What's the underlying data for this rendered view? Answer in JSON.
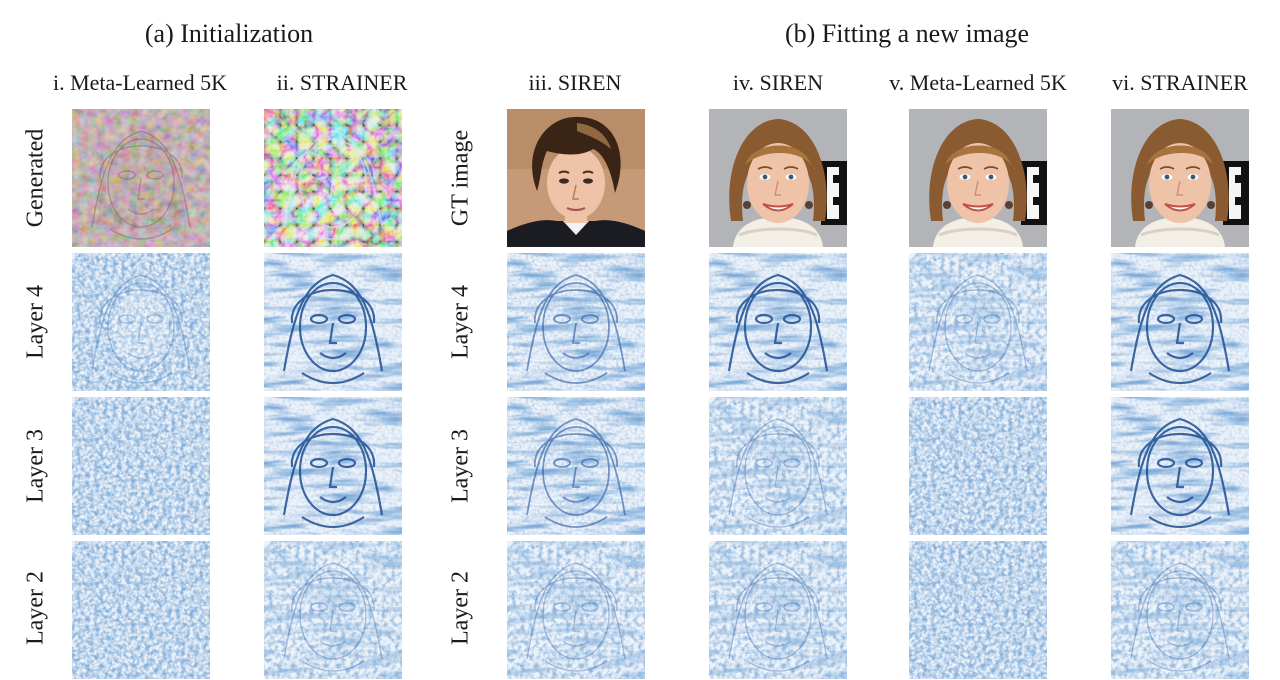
{
  "sections": {
    "initialization": "(a) Initialization",
    "fitting": "(b) Fitting a new image"
  },
  "columns": [
    {
      "id": "col1",
      "label": "i. Meta-Learned 5K",
      "rows": {
        "top": "generated-face-mosaic",
        "layer4": "noise-faint-face",
        "layer3": "noise",
        "layer2": "noise"
      }
    },
    {
      "id": "col2",
      "label": "ii. STRAINER",
      "rows": {
        "top": "generated-face-colorful",
        "layer4": "feature-face-strong",
        "layer3": "feature-face-strong",
        "layer2": "feature-face-faint"
      }
    },
    {
      "id": "col3",
      "label": "iii. SIREN",
      "rows": {
        "top": "gt-photo-man",
        "layer4": "feature-face-medium",
        "layer3": "feature-face-medium",
        "layer2": "feature-face-faint"
      }
    },
    {
      "id": "col4",
      "label": "iv. SIREN",
      "rows": {
        "top": "gt-photo-woman",
        "layer4": "feature-face-strong",
        "layer3": "feature-face-faint",
        "layer2": "feature-face-faint"
      }
    },
    {
      "id": "col5",
      "label": "v. Meta-Learned 5K",
      "rows": {
        "top": "gt-photo-woman",
        "layer4": "feature-face-faint",
        "layer3": "noise",
        "layer2": "noise"
      }
    },
    {
      "id": "col6",
      "label": "vi. STRAINER",
      "rows": {
        "top": "gt-photo-woman",
        "layer4": "feature-face-strong",
        "layer3": "feature-face-strong",
        "layer2": "feature-face-faint"
      }
    }
  ],
  "row_labels": {
    "generated": "Generated",
    "gt_image": "GT image",
    "layer4": "Layer 4",
    "layer3": "Layer 3",
    "layer2": "Layer 2"
  },
  "colors": {
    "feature_blue": "#3b6db3",
    "feature_bg": "#eef3fa",
    "gt_bg": "#b3b4b8",
    "skin": "#efc3a7",
    "hair_dark": "#3a2415",
    "hair_light": "#a87a4c"
  }
}
